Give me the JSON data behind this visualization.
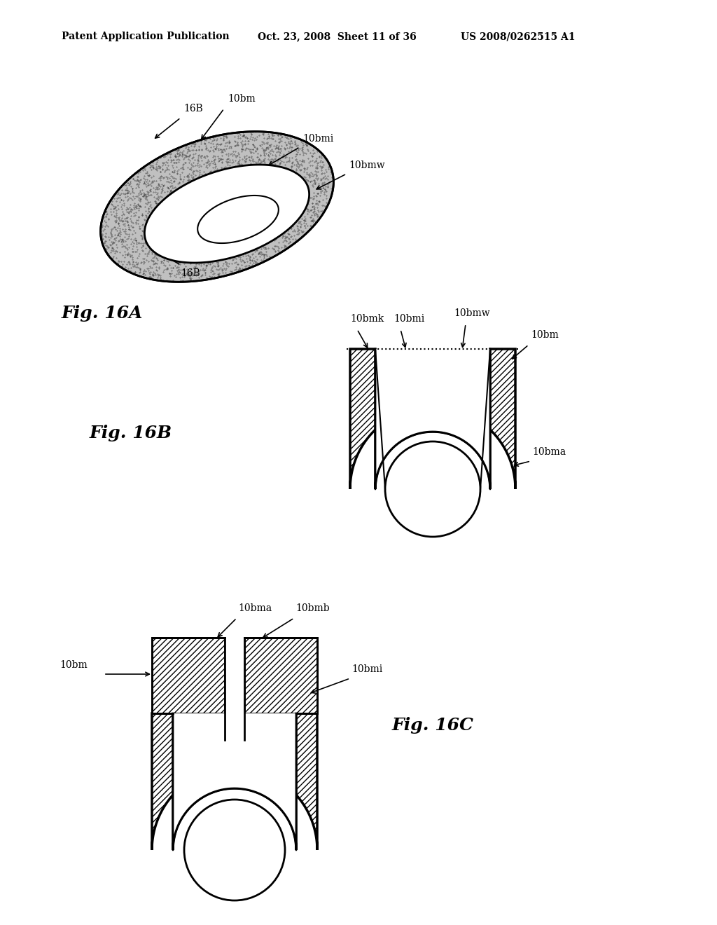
{
  "header_left": "Patent Application Publication",
  "header_mid": "Oct. 23, 2008  Sheet 11 of 36",
  "header_right": "US 2008/0262515 A1",
  "fig16A_label": "Fig. 16A",
  "fig16B_label": "Fig. 16B",
  "fig16C_label": "Fig. 16C",
  "background": "#ffffff",
  "line_color": "#000000"
}
